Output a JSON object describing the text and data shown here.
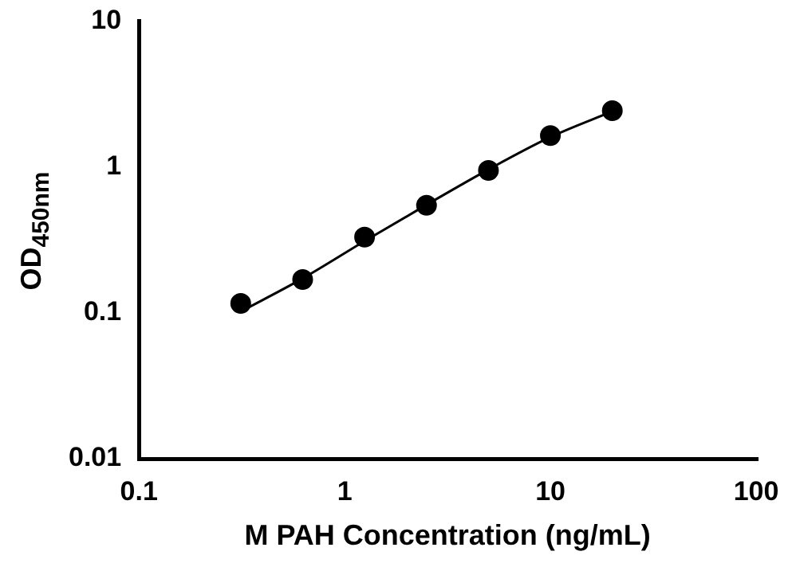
{
  "chart_data": {
    "type": "scatter",
    "xlabel": "M PAH Concentration (ng/mL)",
    "ylabel": "OD$_{450nm}$",
    "log": "xy",
    "xlim": [
      0.1,
      100
    ],
    "ylim": [
      0.01,
      10
    ],
    "xticks": [
      0.1,
      1,
      10,
      100
    ],
    "yticks": [
      0.01,
      0.1,
      1,
      10
    ],
    "grid": false,
    "legend": false,
    "marker": "circle",
    "series": [
      {
        "color": "#000000",
        "x": [
          0.3125,
          0.625,
          1.25,
          2.5,
          5,
          10,
          20
        ],
        "values": [
          0.116,
          0.169,
          0.33,
          0.546,
          0.946,
          1.64,
          2.43
        ]
      },
      {
        "type": "line",
        "color": "#000000",
        "marker": "none",
        "line_style": "solid",
        "x": [
          0.3125,
          0.625,
          1.25,
          2.5,
          5,
          10,
          20
        ],
        "values": [
          0.102,
          0.172,
          0.31,
          0.55,
          0.96,
          1.6,
          2.4
        ]
      }
    ]
  }
}
